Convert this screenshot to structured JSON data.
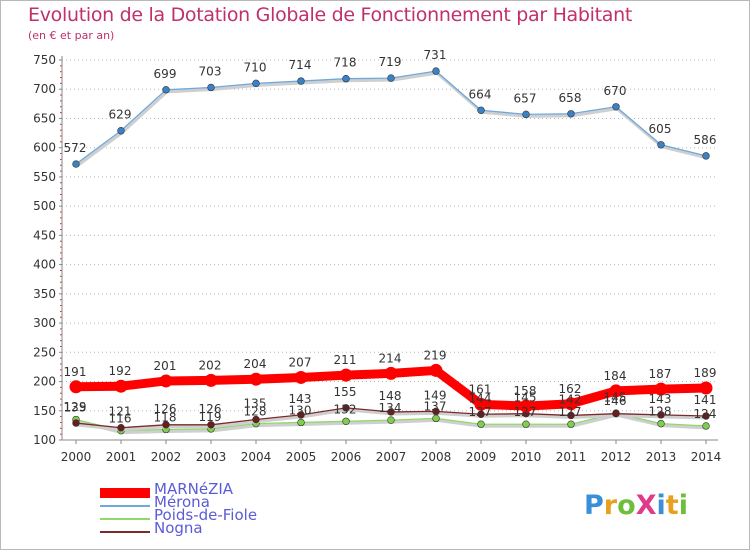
{
  "title": "Evolution de la Dotation Globale de Fonctionnement par Habitant",
  "subtitle": "(en € et par an)",
  "logo": {
    "text": "ProXiti",
    "colors": [
      "#3a8fd9",
      "#e8a020",
      "#6cbf3a",
      "#e03a8a",
      "#3a8fd9",
      "#e8a020",
      "#6cbf3a"
    ]
  },
  "chart_data": {
    "type": "line",
    "title": "Evolution de la Dotation Globale de Fonctionnement par Habitant",
    "subtitle": "(en € et par an)",
    "xlabel": "",
    "ylabel": "",
    "x": [
      2000,
      2001,
      2002,
      2003,
      2004,
      2005,
      2006,
      2007,
      2008,
      2009,
      2010,
      2011,
      2012,
      2013,
      2014
    ],
    "x_tick_labels": [
      "2000",
      "2001",
      "2002",
      "2003",
      "2004",
      "2005",
      "2006",
      "2007",
      "2008",
      "2009",
      "2010",
      "2011",
      "2012",
      "2013",
      "2014"
    ],
    "ylim": [
      100,
      750
    ],
    "y_ticks": [
      100,
      150,
      200,
      250,
      300,
      350,
      400,
      450,
      500,
      550,
      600,
      650,
      700,
      750
    ],
    "grid": "horizontal dotted",
    "legend_position": "bottom-left",
    "series": [
      {
        "name": "MARNéZIA",
        "color": "#ff0000",
        "style": "thick",
        "values": [
          191,
          192,
          201,
          202,
          204,
          207,
          211,
          214,
          219,
          161,
          158,
          162,
          184,
          187,
          189
        ]
      },
      {
        "name": "Mérona",
        "color": "#6ea8dc",
        "style": "thin",
        "values": [
          572,
          629,
          699,
          703,
          710,
          714,
          718,
          719,
          731,
          664,
          657,
          658,
          670,
          605,
          586
        ]
      },
      {
        "name": "Poids-de-Fiole",
        "color": "#8fd86a",
        "style": "thin",
        "values": [
          135,
          116,
          118,
          119,
          128,
          130,
          132,
          134,
          137,
          127,
          127,
          127,
          146,
          128,
          124
        ]
      },
      {
        "name": "Nogna",
        "color": "#7a2a2a",
        "style": "thin",
        "values": [
          129,
          121,
          126,
          126,
          135,
          143,
          155,
          148,
          149,
          144,
          145,
          142,
          145,
          143,
          141
        ]
      }
    ],
    "data_labels": [
      {
        "series": "MARNéZIA",
        "labels": [
          "191",
          "192",
          "201",
          "202",
          "204",
          "207",
          "211",
          "214",
          "219",
          "161",
          "158",
          "162",
          "184",
          "187",
          "189"
        ]
      },
      {
        "series": "Mérona",
        "labels": [
          "572",
          "629",
          "699",
          "703",
          "710",
          "714",
          "718",
          "719",
          "731",
          "664",
          "657",
          "658",
          "670",
          "605",
          "586"
        ]
      },
      {
        "series": "Poids-de-Fiole",
        "labels": [
          "135",
          "116",
          "118",
          "119",
          "128",
          "130",
          "132",
          "134",
          "137",
          "127",
          "127",
          "127",
          "146",
          "128",
          "124"
        ]
      },
      {
        "series": "Nogna",
        "labels": [
          "129",
          "121",
          "126",
          "126",
          "135",
          "143",
          "155",
          "148",
          "149",
          "144",
          "145",
          "142",
          "145",
          "143",
          "141"
        ]
      }
    ]
  }
}
